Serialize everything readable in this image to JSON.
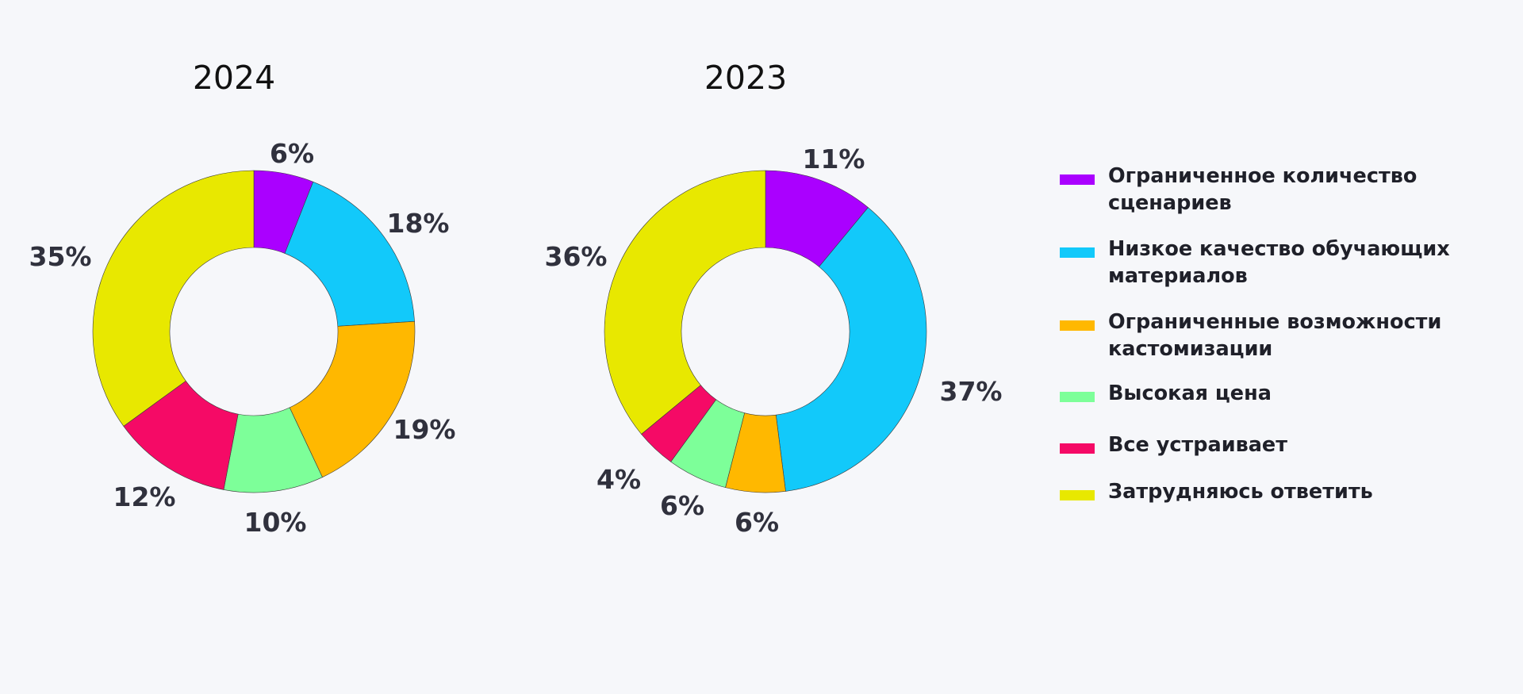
{
  "chart_data": [
    {
      "type": "pie",
      "donut": true,
      "title": "2024",
      "categories": [
        "Ограниченное количество сценариев",
        "Низкое качество обучающих материалов",
        "Ограниченные возможности кастомизации",
        "Высокая цена",
        "Все устраивает",
        "Затрудняюсь ответить"
      ],
      "values": [
        6,
        18,
        19,
        10,
        12,
        35
      ],
      "data_labels": [
        "6%",
        "18%",
        "19%",
        "10%",
        "12%",
        "35%"
      ]
    },
    {
      "type": "pie",
      "donut": true,
      "title": "2023",
      "categories": [
        "Ограниченное количество сценариев",
        "Низкое качество обучающих материалов",
        "Ограниченные возможности кастомизации",
        "Высокая цена",
        "Все устраивает",
        "Затрудняюсь ответить"
      ],
      "values": [
        11,
        37,
        6,
        6,
        4,
        36
      ],
      "data_labels": [
        "11%",
        "37%",
        "6%",
        "6%",
        "4%",
        "36%"
      ]
    }
  ],
  "legend": {
    "placement": "right",
    "items": [
      {
        "lines": [
          "Ограниченное количество",
          "сценариев"
        ],
        "color": "#aa00ff"
      },
      {
        "lines": [
          "Низкое качество обучающих",
          "материалов"
        ],
        "color": "#12c9fa"
      },
      {
        "lines": [
          "Ограниченные возможности",
          "кастомизации"
        ],
        "color": "#ffb800"
      },
      {
        "lines": [
          "Высокая цена"
        ],
        "color": "#7dff99"
      },
      {
        "lines": [
          "Все устраивает"
        ],
        "color": "#f50a66"
      },
      {
        "lines": [
          "Затрудняюсь ответить"
        ],
        "color": "#e8e800"
      }
    ]
  }
}
